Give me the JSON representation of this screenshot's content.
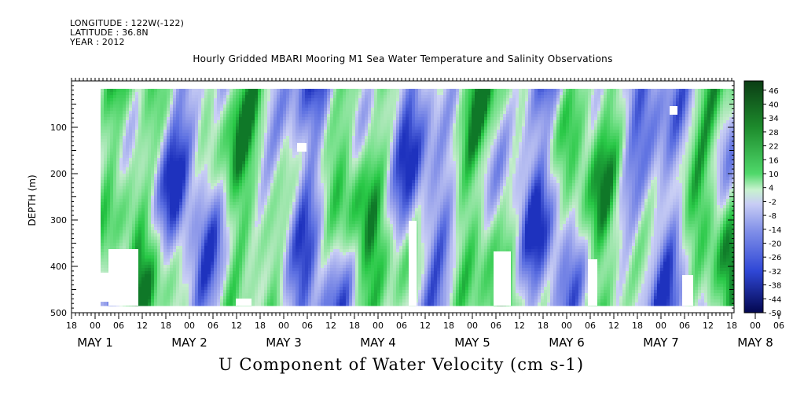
{
  "header": {
    "longitude": "LONGITUDE : 122W(-122)",
    "latitude": "LATITUDE : 36.8N",
    "year": "YEAR : 2012"
  },
  "chart_data": {
    "type": "heatmap",
    "title": "Hourly Gridded MBARI Mooring M1 Sea Water Temperature and Salinity Observations",
    "xlabel": "U Component of Water Velocity (cm s-1)",
    "ylabel": "DEPTH (m)",
    "ylim": [
      500,
      0
    ],
    "yticks": [
      100,
      200,
      300,
      400,
      500
    ],
    "hour_ticks": [
      "18",
      "00",
      "06",
      "12",
      "18",
      "00",
      "06",
      "12",
      "18",
      "00",
      "06",
      "12",
      "18",
      "00",
      "06",
      "12",
      "18",
      "00",
      "06",
      "12",
      "18",
      "00",
      "06",
      "12",
      "18",
      "00",
      "06",
      "12",
      "18",
      "00",
      "06",
      "12",
      "18"
    ],
    "date_labels": [
      "MAY  1",
      "MAY  2",
      "MAY  3",
      "MAY  4",
      "MAY  5",
      "MAY  6",
      "MAY  7",
      "MAY  8"
    ],
    "colorbar": {
      "levels": [
        "46",
        "40",
        "34",
        "28",
        "22",
        "16",
        "10",
        "4",
        "-2",
        "-8",
        "-14",
        "-20",
        "-26",
        "-32",
        "-38",
        "-44",
        "-50"
      ],
      "min": -50,
      "max": 50
    },
    "colors": {
      "positive": "#2ecc40",
      "negative": "#6b7fe0",
      "neutral": "#c8eed0"
    }
  }
}
